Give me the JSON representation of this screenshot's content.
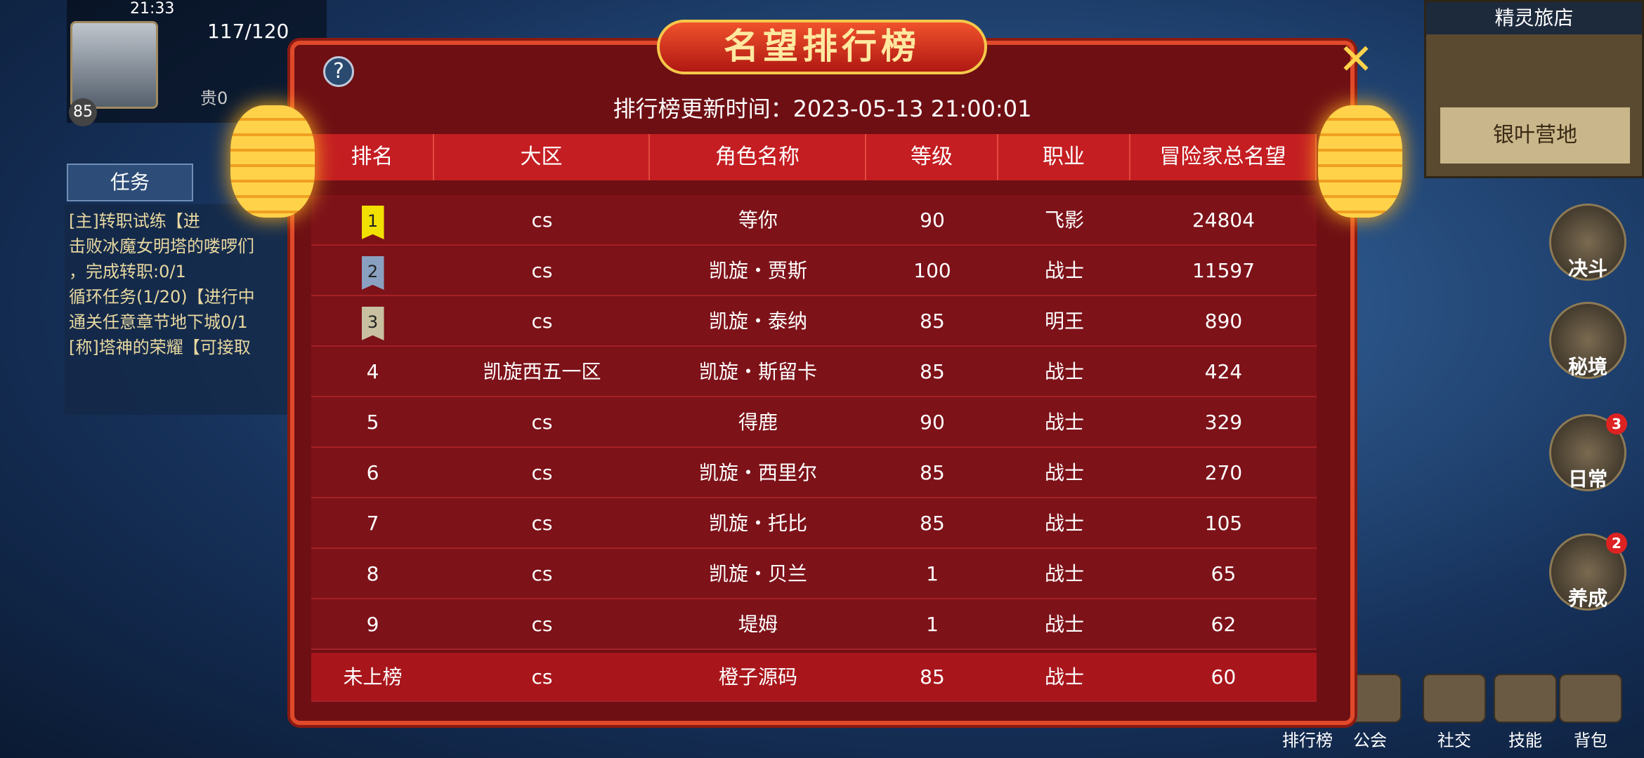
{
  "status": {
    "time": "21:33"
  },
  "player": {
    "level": "85",
    "stamina": "117/120",
    "rank": "贵0"
  },
  "quests": {
    "tab": "任务",
    "lines": [
      "[主]转职试练【进",
      "击败冰魔女明塔的喽啰们",
      "，完成转职:0/1",
      "循环任务(1/20)【进行中",
      "通关任意章节地下城0/1",
      "[称]塔神的荣耀【可接取"
    ]
  },
  "minimap": {
    "title": "精灵旅店",
    "location": "银叶营地"
  },
  "side_buttons": [
    {
      "label": "决斗"
    },
    {
      "label": "秘境"
    },
    {
      "label": "日常",
      "badge": "3"
    },
    {
      "label": "养成",
      "badge": "2"
    }
  ],
  "bottom_buttons": [
    "排行榜",
    "公会",
    "社交",
    "技能",
    "背包"
  ],
  "dialog": {
    "title": "名望排行榜",
    "update_time": "排行榜更新时间：2023-05-13 21:00:01",
    "headers": [
      "排名",
      "大区",
      "角色名称",
      "等级",
      "职业",
      "冒险家总名望"
    ],
    "rows": [
      [
        "1",
        "cs",
        "等你",
        "90",
        "飞影",
        "24804"
      ],
      [
        "2",
        "cs",
        "凯旋・贾斯",
        "100",
        "战士",
        "11597"
      ],
      [
        "3",
        "cs",
        "凯旋・泰纳",
        "85",
        "明王",
        "890"
      ],
      [
        "4",
        "凯旋西五一区",
        "凯旋・斯留卡",
        "85",
        "战士",
        "424"
      ],
      [
        "5",
        "cs",
        "得鹿",
        "90",
        "战士",
        "329"
      ],
      [
        "6",
        "cs",
        "凯旋・西里尔",
        "85",
        "战士",
        "270"
      ],
      [
        "7",
        "cs",
        "凯旋・托比",
        "85",
        "战士",
        "105"
      ],
      [
        "8",
        "cs",
        "凯旋・贝兰",
        "1",
        "战士",
        "65"
      ],
      [
        "9",
        "cs",
        "堤姆",
        "1",
        "战士",
        "62"
      ]
    ],
    "self_row": [
      "未上榜",
      "cs",
      "橙子源码",
      "85",
      "战士",
      "60"
    ]
  }
}
